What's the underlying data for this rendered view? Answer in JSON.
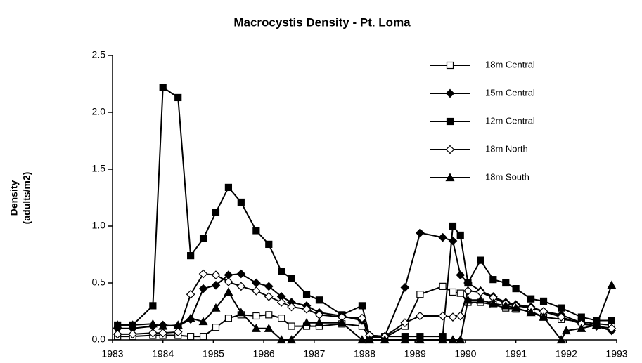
{
  "chart_data": {
    "type": "line",
    "title": "Macrocystis Density - Pt. Loma",
    "ylabel": [
      "Density",
      "(adults/m2)"
    ],
    "xlim": [
      1983,
      1993
    ],
    "xticks": [
      1983,
      1984,
      1985,
      1986,
      1987,
      1988,
      1989,
      1990,
      1991,
      1992,
      1993
    ],
    "ylim": [
      0,
      2.5
    ],
    "yticks": [
      {
        "value": 0,
        "label": "0.0"
      },
      0.5,
      {
        "value": 1,
        "label": "1.0"
      },
      1.5,
      {
        "value": 2,
        "label": "2.0"
      },
      2.5
    ],
    "grid": false,
    "legend": "upper right",
    "series": [
      {
        "name": "18m Central",
        "color": "#000000",
        "marker": "open-square",
        "x": [
          1983.1,
          1983.4,
          1983.8,
          1984.0,
          1984.3,
          1984.55,
          1984.8,
          1985.05,
          1985.3,
          1985.55,
          1985.85,
          1986.1,
          1986.35,
          1986.55,
          1986.85,
          1987.1,
          1987.55,
          1987.95,
          1988.1,
          1988.4,
          1988.8,
          1989.1,
          1989.55,
          1989.75,
          1989.9,
          1990.05,
          1990.3,
          1990.55,
          1990.8,
          1991.0,
          1991.3,
          1991.55,
          1991.9,
          1992.3,
          1992.6,
          1992.9
        ],
        "values": [
          0.03,
          0.03,
          0.04,
          0.04,
          0.04,
          0.03,
          0.03,
          0.11,
          0.19,
          0.22,
          0.21,
          0.22,
          0.19,
          0.12,
          0.12,
          0.12,
          0.14,
          0.12,
          0.02,
          0.02,
          0.12,
          0.4,
          0.47,
          0.42,
          0.41,
          0.33,
          0.33,
          0.31,
          0.28,
          0.27,
          0.25,
          0.2,
          0.18,
          0.16,
          0.14,
          0.13
        ]
      },
      {
        "name": "15m Central",
        "color": "#000000",
        "marker": "diamond",
        "x": [
          1983.1,
          1983.4,
          1983.8,
          1984.0,
          1984.3,
          1984.55,
          1984.8,
          1985.05,
          1985.3,
          1985.55,
          1985.85,
          1986.1,
          1986.35,
          1986.55,
          1986.85,
          1987.1,
          1987.55,
          1987.95,
          1988.1,
          1988.4,
          1988.8,
          1989.1,
          1989.55,
          1989.75,
          1989.9,
          1990.05,
          1990.3,
          1990.55,
          1990.8,
          1991.0,
          1991.3,
          1991.55,
          1991.9,
          1992.3,
          1992.6,
          1992.9
        ],
        "values": [
          0.1,
          0.1,
          0.12,
          0.13,
          0.12,
          0.18,
          0.45,
          0.48,
          0.57,
          0.58,
          0.5,
          0.47,
          0.38,
          0.33,
          0.3,
          0.24,
          0.21,
          0.17,
          0.04,
          0.03,
          0.46,
          0.94,
          0.9,
          0.87,
          0.57,
          0.5,
          0.43,
          0.38,
          0.33,
          0.31,
          0.29,
          0.25,
          0.22,
          0.15,
          0.12,
          0.08
        ]
      },
      {
        "name": "12m Central",
        "color": "#000000",
        "marker": "square",
        "x": [
          1983.1,
          1983.4,
          1983.8,
          1984.0,
          1984.3,
          1984.55,
          1984.8,
          1985.05,
          1985.3,
          1985.55,
          1985.85,
          1986.1,
          1986.35,
          1986.55,
          1986.85,
          1987.1,
          1987.55,
          1987.95,
          1988.1,
          1988.4,
          1988.8,
          1989.1,
          1989.55,
          1989.75,
          1989.9,
          1990.05,
          1990.3,
          1990.55,
          1990.8,
          1991.0,
          1991.3,
          1991.55,
          1991.9,
          1992.3,
          1992.6,
          1992.9
        ],
        "values": [
          0.13,
          0.13,
          0.3,
          2.22,
          2.13,
          0.74,
          0.89,
          1.12,
          1.34,
          1.21,
          0.96,
          0.84,
          0.6,
          0.54,
          0.4,
          0.35,
          0.22,
          0.3,
          0.03,
          0.03,
          0.03,
          0.03,
          0.03,
          1.0,
          0.92,
          0.5,
          0.7,
          0.53,
          0.5,
          0.45,
          0.36,
          0.34,
          0.28,
          0.2,
          0.17,
          0.17
        ]
      },
      {
        "name": "18m North",
        "color": "#000000",
        "marker": "open-diamond",
        "x": [
          1983.1,
          1983.4,
          1983.8,
          1984.0,
          1984.3,
          1984.55,
          1984.8,
          1985.05,
          1985.3,
          1985.55,
          1985.85,
          1986.1,
          1986.35,
          1986.55,
          1986.85,
          1987.1,
          1987.55,
          1987.95,
          1988.1,
          1988.4,
          1988.8,
          1989.1,
          1989.55,
          1989.75,
          1989.9,
          1990.05,
          1990.3,
          1990.55,
          1990.8,
          1991.0,
          1991.3,
          1991.55,
          1991.9,
          1992.3,
          1992.6,
          1992.9
        ],
        "values": [
          0.05,
          0.05,
          0.06,
          0.06,
          0.07,
          0.4,
          0.58,
          0.57,
          0.51,
          0.47,
          0.43,
          0.38,
          0.33,
          0.29,
          0.27,
          0.22,
          0.2,
          0.19,
          0.04,
          0.03,
          0.15,
          0.21,
          0.21,
          0.2,
          0.21,
          0.43,
          0.42,
          0.37,
          0.32,
          0.3,
          0.28,
          0.25,
          0.2,
          0.14,
          0.12,
          0.1
        ]
      },
      {
        "name": "18m South",
        "color": "#000000",
        "marker": "triangle",
        "x": [
          1983.1,
          1983.4,
          1983.8,
          1984.0,
          1984.3,
          1984.55,
          1984.8,
          1985.05,
          1985.3,
          1985.55,
          1985.85,
          1986.1,
          1986.35,
          1986.55,
          1986.85,
          1987.1,
          1987.55,
          1987.95,
          1988.1,
          1988.4,
          1988.8,
          1989.1,
          1989.55,
          1989.75,
          1989.9,
          1990.05,
          1990.3,
          1990.55,
          1990.8,
          1991.0,
          1991.3,
          1991.55,
          1991.9,
          1992.0,
          1992.3,
          1992.6,
          1992.9
        ],
        "values": [
          0.13,
          0.13,
          0.14,
          0.12,
          0.13,
          0.19,
          0.16,
          0.28,
          0.42,
          0.24,
          0.1,
          0.1,
          0,
          0,
          0.15,
          0.15,
          0.15,
          0,
          0,
          0,
          0,
          0,
          0,
          0,
          0,
          0.35,
          0.35,
          0.32,
          0.3,
          0.28,
          0.24,
          0.2,
          0,
          0.08,
          0.1,
          0.13,
          0.48
        ]
      }
    ]
  }
}
